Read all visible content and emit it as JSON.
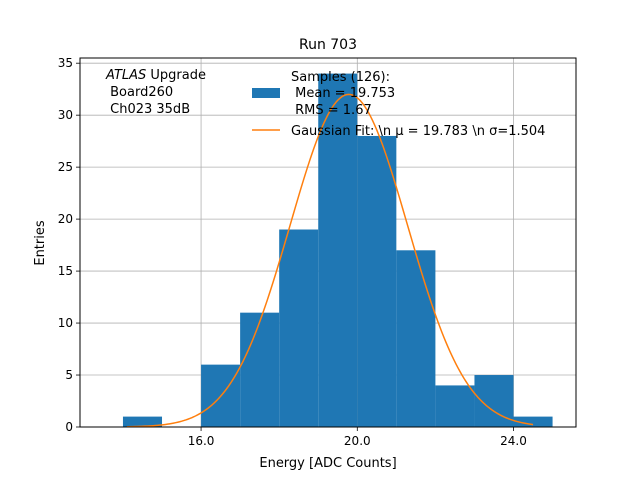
{
  "chart_data": {
    "type": "bar",
    "title": "Run 703",
    "xlabel": "Energy [ADC Counts]",
    "ylabel": "Entries",
    "xlim": [
      12.9,
      25.6
    ],
    "ylim": [
      0,
      35.5
    ],
    "grid": true,
    "x_ticks": [
      16.0,
      20.0,
      24.0
    ],
    "x_tick_labels": [
      "16.0",
      "20.0",
      "24.0"
    ],
    "y_ticks": [
      0,
      5,
      10,
      15,
      20,
      25,
      30,
      35
    ],
    "y_tick_labels": [
      "0",
      "5",
      "10",
      "15",
      "20",
      "25",
      "30",
      "35"
    ],
    "histogram": {
      "name": "Samples (126):\n Mean = 19.753\n RMS = 1.67",
      "color": "#1f77b4",
      "bin_edges": [
        14,
        15,
        16,
        17,
        18,
        19,
        20,
        21,
        22,
        23,
        24,
        25
      ],
      "counts": [
        1,
        0,
        6,
        11,
        19,
        34,
        28,
        17,
        4,
        5,
        1
      ]
    },
    "fit": {
      "name": "Gaussian Fit: \\n $\\mu$ = 19.783 \\n $\\sigma$=1.504",
      "color": "#ff7f0e",
      "mu": 19.783,
      "sigma": 1.504,
      "amplitude": 32.0,
      "x_range": [
        14.1,
        24.5
      ]
    },
    "legend": {
      "placement": "top-center",
      "entries": [
        [
          "Samples (126):",
          " Mean = 19.753",
          " RMS = 1.67"
        ],
        [
          "Gaussian Fit: \\n μ = 19.783 \\n σ=1.504"
        ]
      ]
    },
    "annotation": {
      "lines": [
        "ATLAS Upgrade",
        " Board260",
        " Ch023 35dB"
      ]
    }
  }
}
